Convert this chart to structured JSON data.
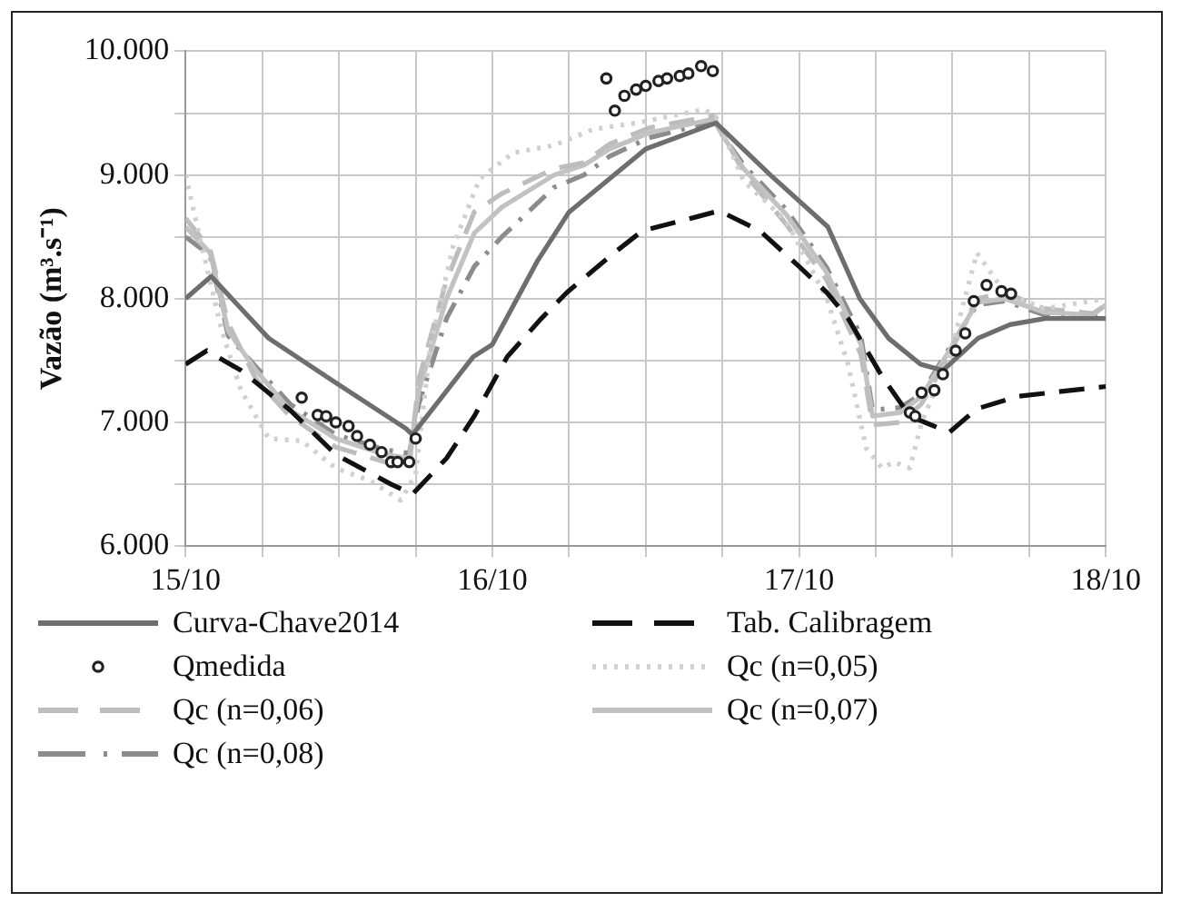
{
  "chart_data": {
    "type": "line",
    "ylabel": "Vazão (m³.s⁻¹)",
    "xlim": [
      "--10-15",
      "--10-18"
    ],
    "ylim": [
      6000,
      10000
    ],
    "xticks": [
      {
        "value": "--10-15",
        "label": "15/10"
      },
      {
        "value": "--10-15T06:00",
        "label": null
      },
      {
        "value": "--10-15T12:00",
        "label": null
      },
      {
        "value": "--10-15T18:00",
        "label": null
      },
      {
        "value": "--10-16",
        "label": "16/10"
      },
      {
        "value": "--10-16T06:00",
        "label": null
      },
      {
        "value": "--10-16T12:00",
        "label": null
      },
      {
        "value": "--10-16T18:00",
        "label": null
      },
      {
        "value": "--10-17",
        "label": "17/10"
      },
      {
        "value": "--10-17T06:00",
        "label": null
      },
      {
        "value": "--10-17T12:00",
        "label": null
      },
      {
        "value": "--10-17T18:00",
        "label": null
      },
      {
        "value": "--10-18",
        "label": "18/10"
      }
    ],
    "yticks": [
      {
        "value": 6000,
        "label": "6.000"
      },
      {
        "value": 6500,
        "label": null
      },
      {
        "value": 7000,
        "label": "7.000"
      },
      {
        "value": 7500,
        "label": null
      },
      {
        "value": 8000,
        "label": "8.000"
      },
      {
        "value": 8500,
        "label": null
      },
      {
        "value": 9000,
        "label": "9.000"
      },
      {
        "value": 9500,
        "label": null
      },
      {
        "value": 10000,
        "label": "10.000"
      }
    ],
    "grid": true,
    "legend": "bottom",
    "series": [
      {
        "name": "Curva-Chave2014",
        "color": "#6e6e6e",
        "line_style": "solid",
        "marker": "none",
        "x": [
          "--10-15T00:00",
          "--10-15T02:00",
          "--10-15T06:30",
          "--10-15T11:45",
          "--10-15T17:15",
          "--10-15T17:45",
          "--10-15T22:30",
          "--10-16T00:00",
          "--10-16T03:30",
          "--10-16T06:00",
          "--10-16T12:00",
          "--10-16T17:30",
          "--10-16T21:45",
          "--10-17T02:15",
          "--10-17T04:45",
          "--10-17T07:00",
          "--10-17T09:30",
          "--10-17T11:15",
          "--10-17T14:00",
          "--10-17T16:30",
          "--10-17T19:15",
          "--10-18T00:00"
        ],
        "values": [
          8000,
          8180,
          7680,
          7320,
          6950,
          6900,
          7530,
          7630,
          8300,
          8700,
          9210,
          9420,
          9000,
          8580,
          8000,
          7680,
          7470,
          7420,
          7680,
          7790,
          7840,
          7840
        ]
      },
      {
        "name": "Tab. Calibragem",
        "color": "#111111",
        "line_style": "dashed",
        "marker": "none",
        "x": [
          "--10-15T00:00",
          "--10-15T01:40",
          "--10-15T04:20",
          "--10-15T08:10",
          "--10-15T11:45",
          "--10-15T16:05",
          "--10-15T17:45",
          "--10-15T20:25",
          "--10-15T22:35",
          "--10-16T01:10",
          "--10-16T03:50",
          "--10-16T05:50",
          "--10-16T09:10",
          "--10-16T11:45",
          "--10-16T14:50",
          "--10-16T17:45",
          "--10-16T20:55",
          "--10-17T00:00",
          "--10-17T02:10",
          "--10-17T03:50",
          "--10-17T06:30",
          "--10-17T08:40",
          "--10-17T11:45",
          "--10-17T13:55",
          "--10-17T17:05",
          "--10-17T21:20",
          "--10-18T00:00"
        ],
        "values": [
          7470,
          7580,
          7420,
          7100,
          6740,
          6500,
          6420,
          6710,
          7050,
          7530,
          7840,
          8050,
          8340,
          8550,
          8630,
          8710,
          8550,
          8260,
          8050,
          7840,
          7370,
          7050,
          6920,
          7110,
          7210,
          7260,
          7290
        ]
      },
      {
        "name": "Qmedida",
        "type": "scatter",
        "color": "#222222",
        "marker": "circle",
        "x": [
          "--10-15T09:05",
          "--10-15T10:20",
          "--10-15T11:00",
          "--10-15T11:45",
          "--10-15T12:45",
          "--10-15T13:25",
          "--10-15T14:25",
          "--10-15T15:20",
          "--10-15T16:05",
          "--10-15T16:35",
          "--10-15T17:30",
          "--10-15T18:00",
          "--10-16T08:55",
          "--10-16T09:35",
          "--10-16T10:20",
          "--10-16T11:15",
          "--10-16T12:00",
          "--10-16T13:00",
          "--10-16T13:40",
          "--10-16T14:40",
          "--10-16T15:20",
          "--10-16T16:20",
          "--10-16T17:15",
          "--10-17T08:40",
          "--10-17T09:05",
          "--10-17T09:35",
          "--10-17T10:35",
          "--10-17T11:15",
          "--10-17T12:15",
          "--10-17T13:00",
          "--10-17T13:40",
          "--10-17T14:40",
          "--10-17T15:50",
          "--10-17T16:35"
        ],
        "values": [
          7200,
          7060,
          7050,
          7000,
          6970,
          6890,
          6820,
          6760,
          6680,
          6680,
          6680,
          6870,
          9780,
          9520,
          9640,
          9690,
          9720,
          9760,
          9780,
          9800,
          9820,
          9880,
          9840,
          7080,
          7050,
          7240,
          7260,
          7390,
          7580,
          7720,
          7980,
          8110,
          8060,
          8040
        ]
      },
      {
        "name": "Qc (n=0,05)",
        "color": "#d0d0d0",
        "line_style": "dotted",
        "marker": "none",
        "x": [
          "--10-15T00:00",
          "--10-15T01:10",
          "--10-15T02:50",
          "--10-15T04:20",
          "--10-15T06:30",
          "--10-15T09:05",
          "--10-15T11:45",
          "--10-15T14:25",
          "--10-15T16:50",
          "--10-15T18:00",
          "--10-15T19:10",
          "--10-15T20:55",
          "--10-15T23:00",
          "--10-16T01:40",
          "--10-16T04:50",
          "--10-16T07:55",
          "--10-16T11:15",
          "--10-16T16:35",
          "--10-16T17:30",
          "--10-16T19:40",
          "--10-16T23:00",
          "--10-17T02:10",
          "--10-17T03:50",
          "--10-17T05:15",
          "--10-17T06:30",
          "--10-17T07:25",
          "--10-17T08:40",
          "--10-17T09:35",
          "--10-17T11:45",
          "--10-17T13:55",
          "--10-17T16:05",
          "--10-17T19:10",
          "--10-18T00:00"
        ],
        "values": [
          9000,
          8470,
          7740,
          7260,
          6870,
          6850,
          6630,
          6530,
          6370,
          6580,
          7630,
          8420,
          8970,
          9180,
          9240,
          9370,
          9420,
          9530,
          9470,
          8950,
          8630,
          8000,
          7470,
          6790,
          6630,
          6680,
          6630,
          7000,
          7530,
          8370,
          8050,
          7920,
          8000
        ]
      },
      {
        "name": "Qc (n=0,06)",
        "color": "#bdbdbd",
        "line_style": "dashed",
        "marker": "none",
        "x": [
          "--10-15T00:00",
          "--10-15T01:55",
          "--10-15T03:20",
          "--10-15T05:30",
          "--10-15T08:10",
          "--10-15T11:45",
          "--10-15T15:35",
          "--10-15T17:30",
          "--10-15T18:15",
          "--10-15T20:25",
          "--10-15T22:35",
          "--10-16T00:45",
          "--10-16T04:50",
          "--10-16T07:10",
          "--10-16T09:10",
          "--10-16T12:15",
          "--10-16T17:15",
          "--10-16T19:40",
          "--10-16T23:00",
          "--10-17T02:10",
          "--10-17T04:50",
          "--10-17T05:45",
          "--10-17T07:55",
          "--10-17T09:35",
          "--10-17T11:45",
          "--10-17T13:55",
          "--10-17T16:05",
          "--10-17T19:10",
          "--10-17T23:00",
          "--10-18T00:00"
        ],
        "values": [
          8650,
          8400,
          7800,
          7350,
          7050,
          6800,
          6680,
          6650,
          7350,
          8150,
          8700,
          8850,
          9050,
          9100,
          9250,
          9380,
          9480,
          9020,
          8600,
          8150,
          7550,
          6980,
          7000,
          7150,
          7550,
          8000,
          8050,
          7920,
          7880,
          7950
        ]
      },
      {
        "name": "Qc (n=0,07)",
        "color": "#c2c2c2",
        "line_style": "solid",
        "marker": "none",
        "x": [
          "--10-15T00:00",
          "--10-15T01:55",
          "--10-15T03:20",
          "--10-15T05:30",
          "--10-15T08:10",
          "--10-15T11:45",
          "--10-15T15:35",
          "--10-15T17:30",
          "--10-15T18:15",
          "--10-15T20:25",
          "--10-15T22:35",
          "--10-16T00:45",
          "--10-16T04:50",
          "--10-16T07:10",
          "--10-16T09:10",
          "--10-16T12:15",
          "--10-16T17:15",
          "--10-16T19:40",
          "--10-16T23:00",
          "--10-17T02:10",
          "--10-17T04:50",
          "--10-17T05:45",
          "--10-17T07:55",
          "--10-17T09:35",
          "--10-17T11:45",
          "--10-17T13:55",
          "--10-17T16:05",
          "--10-17T19:10",
          "--10-17T23:00",
          "--10-18T00:00"
        ],
        "values": [
          8580,
          8370,
          7740,
          7420,
          7100,
          6870,
          6740,
          6710,
          7260,
          8000,
          8530,
          8740,
          9000,
          9080,
          9210,
          9340,
          9450,
          9050,
          8680,
          8210,
          7630,
          7050,
          7080,
          7210,
          7580,
          7970,
          8000,
          7890,
          7870,
          7950
        ]
      },
      {
        "name": "Qc (n=0,08)",
        "color": "#8c8c8c",
        "line_style": "dashdot",
        "marker": "none",
        "x": [
          "--10-15T00:00",
          "--10-15T01:55",
          "--10-15T03:20",
          "--10-15T05:30",
          "--10-15T08:10",
          "--10-15T11:45",
          "--10-15T15:35",
          "--10-15T17:30",
          "--10-15T18:15",
          "--10-15T20:25",
          "--10-15T22:35",
          "--10-16T00:45",
          "--10-16T04:50",
          "--10-16T07:10",
          "--10-16T09:10",
          "--10-16T12:15",
          "--10-16T17:15",
          "--10-16T19:40",
          "--10-16T23:00",
          "--10-17T02:10",
          "--10-17T04:50",
          "--10-17T05:45",
          "--10-17T07:55",
          "--10-17T09:35",
          "--10-17T11:45",
          "--10-17T13:55",
          "--10-17T16:05",
          "--10-17T19:10",
          "--10-17T23:00",
          "--10-18T00:00"
        ],
        "values": [
          8500,
          8350,
          7700,
          7450,
          7150,
          6900,
          6780,
          6750,
          7150,
          7840,
          8260,
          8500,
          8900,
          9000,
          9150,
          9300,
          9430,
          9080,
          8720,
          8250,
          7700,
          7100,
          7120,
          7230,
          7600,
          7950,
          7980,
          7870,
          7860,
          7920
        ]
      }
    ]
  }
}
